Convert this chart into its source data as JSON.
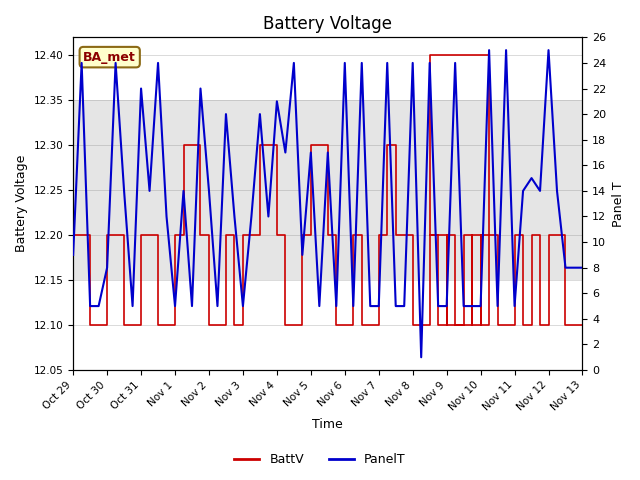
{
  "title": "Battery Voltage",
  "xlabel": "Time",
  "ylabel_left": "Battery Voltage",
  "ylabel_right": "Panel T",
  "ylim_left": [
    12.05,
    12.42
  ],
  "ylim_right": [
    0,
    26
  ],
  "yticks_left": [
    12.05,
    12.1,
    12.15,
    12.2,
    12.25,
    12.3,
    12.35,
    12.4
  ],
  "yticks_right": [
    0,
    2,
    4,
    6,
    8,
    10,
    12,
    14,
    16,
    18,
    20,
    22,
    24,
    26
  ],
  "background_color": "#ffffff",
  "band_color": "#cccccc",
  "band_y1": 12.15,
  "band_y2": 12.35,
  "ba_met_label": "BA_met",
  "xlim": [
    0,
    360
  ],
  "xtick_positions": [
    0,
    24,
    48,
    72,
    96,
    120,
    144,
    168,
    192,
    216,
    240,
    264,
    288,
    312,
    336,
    360
  ],
  "xtick_labels": [
    "Oct 29",
    "Oct 30",
    "Oct 31",
    "Nov 1",
    "Nov 2",
    "Nov 3",
    "Nov 4",
    "Nov 5",
    "Nov 6",
    "Nov 7",
    "Nov 8",
    "Nov 9",
    "Nov 10",
    "Nov 11",
    "Nov 12",
    "Nov 13"
  ],
  "battv_color": "#cc0000",
  "panelt_color": "#0000cc",
  "battv_data_x": [
    0,
    12,
    12,
    24,
    24,
    36,
    36,
    48,
    48,
    60,
    60,
    72,
    72,
    78,
    78,
    90,
    90,
    96,
    96,
    108,
    108,
    114,
    114,
    120,
    120,
    132,
    132,
    144,
    144,
    150,
    150,
    162,
    162,
    168,
    168,
    180,
    180,
    186,
    186,
    198,
    198,
    204,
    204,
    216,
    216,
    222,
    222,
    228,
    228,
    240,
    240,
    252,
    252,
    258,
    258,
    264,
    264,
    270,
    270,
    276,
    276,
    282,
    282,
    288,
    288,
    294,
    294,
    252,
    252,
    264,
    264,
    282,
    282,
    288,
    288,
    294,
    294,
    300,
    300,
    312,
    312,
    318,
    318,
    324,
    324,
    330,
    330,
    336,
    336,
    348,
    348,
    360
  ],
  "battv_data_y": [
    12.2,
    12.2,
    12.1,
    12.1,
    12.2,
    12.2,
    12.1,
    12.1,
    12.2,
    12.2,
    12.1,
    12.1,
    12.2,
    12.2,
    12.3,
    12.3,
    12.2,
    12.2,
    12.1,
    12.1,
    12.2,
    12.2,
    12.1,
    12.1,
    12.2,
    12.2,
    12.3,
    12.3,
    12.2,
    12.2,
    12.1,
    12.1,
    12.2,
    12.2,
    12.3,
    12.3,
    12.2,
    12.2,
    12.1,
    12.1,
    12.2,
    12.2,
    12.1,
    12.1,
    12.2,
    12.2,
    12.3,
    12.3,
    12.2,
    12.2,
    12.1,
    12.1,
    12.2,
    12.2,
    12.1,
    12.1,
    12.2,
    12.2,
    12.1,
    12.1,
    12.2,
    12.2,
    12.1,
    12.1,
    12.2,
    12.2,
    12.4,
    12.4,
    12.2,
    12.2,
    12.1,
    12.1,
    12.2,
    12.2,
    12.1,
    12.1,
    12.2,
    12.2,
    12.1,
    12.1,
    12.2,
    12.2,
    12.1,
    12.1,
    12.2,
    12.2,
    12.1,
    12.1,
    12.2,
    12.2,
    12.1,
    12.1
  ],
  "panelt_data_x": [
    0,
    6,
    12,
    18,
    24,
    30,
    36,
    42,
    48,
    54,
    60,
    66,
    72,
    78,
    84,
    90,
    96,
    102,
    108,
    114,
    120,
    126,
    132,
    138,
    144,
    150,
    156,
    162,
    168,
    174,
    180,
    186,
    192,
    198,
    204,
    210,
    216,
    222,
    228,
    234,
    240,
    246,
    252,
    258,
    264,
    270,
    276,
    282,
    288,
    294,
    300,
    306,
    312,
    318,
    324,
    330,
    336,
    342,
    348,
    354,
    360
  ],
  "panelt_data_y": [
    9,
    24,
    5,
    5,
    8,
    24,
    14,
    5,
    22,
    14,
    24,
    12,
    5,
    14,
    5,
    22,
    14,
    5,
    20,
    12,
    5,
    12,
    20,
    12,
    21,
    17,
    24,
    9,
    17,
    5,
    17,
    5,
    24,
    5,
    24,
    5,
    5,
    24,
    5,
    5,
    24,
    1,
    24,
    5,
    5,
    24,
    5,
    5,
    5,
    25,
    5,
    25,
    5,
    14,
    15,
    14,
    25,
    14,
    8,
    8,
    8
  ]
}
